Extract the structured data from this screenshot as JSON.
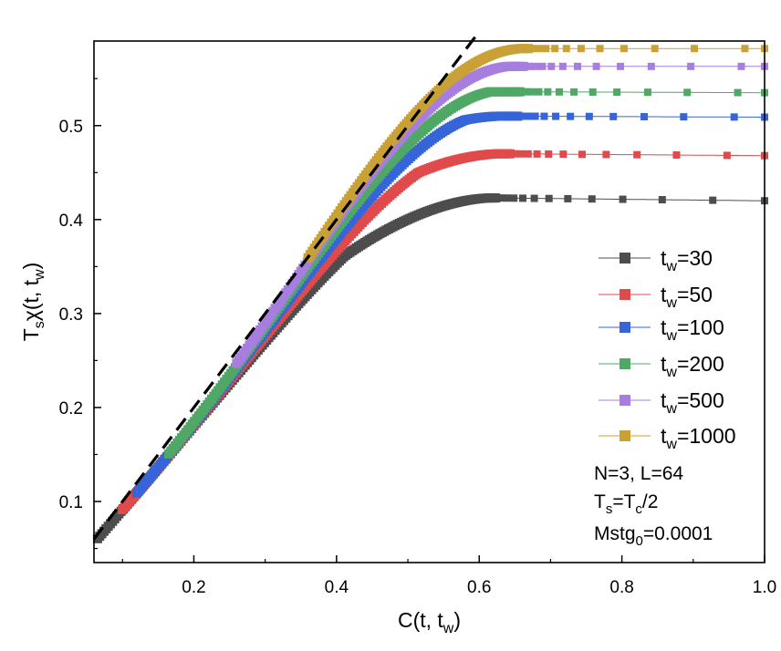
{
  "chart_data": {
    "type": "scatter",
    "title": "",
    "xlabel": {
      "base": "C(t, t",
      "sub": "w",
      "tail": ")"
    },
    "ylabel": {
      "a": "T",
      "a_sub": "s",
      "b": "χ(t, t",
      "b_sub": "w",
      "c": ")"
    },
    "xlim": [
      0.06,
      1.0
    ],
    "ylim": [
      0.035,
      0.59
    ],
    "x_ticks": [
      0.2,
      0.4,
      0.6,
      0.8,
      1.0
    ],
    "x_tick_labels": [
      "0.2",
      "0.4",
      "0.6",
      "0.8",
      "1.0"
    ],
    "y_ticks": [
      0.1,
      0.2,
      0.3,
      0.4,
      0.5
    ],
    "y_tick_labels": [
      "0.1",
      "0.2",
      "0.3",
      "0.4",
      "0.5"
    ],
    "reference_line": {
      "name": "y = x",
      "x": [
        0.06,
        0.6
      ],
      "y": [
        0.06,
        0.6
      ],
      "style": "dashed",
      "color": "#000000"
    },
    "series": [
      {
        "name": "tw=30",
        "legend": {
          "base": "t",
          "sub": "w",
          "tail": "=30"
        },
        "color": "#4d4d4d",
        "start_x": 0.065,
        "end_x": 0.625,
        "plateau_y": 0.423,
        "slope_end": 0.54,
        "final_y": 0.42
      },
      {
        "name": "tw=50",
        "legend": {
          "base": "t",
          "sub": "w",
          "tail": "=50"
        },
        "color": "#e04a4a",
        "start_x": 0.1,
        "end_x": 0.645,
        "plateau_y": 0.47,
        "slope_end": 0.44,
        "final_y": 0.468
      },
      {
        "name": "tw=100",
        "legend": {
          "base": "t",
          "sub": "w",
          "tail": "=100"
        },
        "color": "#3565d8",
        "start_x": 0.12,
        "end_x": 0.655,
        "plateau_y": 0.51,
        "slope_end": 0.34,
        "final_y": 0.509
      },
      {
        "name": "tw=200",
        "legend": {
          "base": "t",
          "sub": "w",
          "tail": "=200"
        },
        "color": "#4fa865",
        "start_x": 0.165,
        "end_x": 0.66,
        "plateau_y": 0.536,
        "slope_end": 0.22,
        "final_y": 0.535
      },
      {
        "name": "tw=500",
        "legend": {
          "base": "t",
          "sub": "w",
          "tail": "=500"
        },
        "color": "#a77ee0",
        "start_x": 0.26,
        "end_x": 0.665,
        "plateau_y": 0.563,
        "slope_end": 0.12,
        "final_y": 0.563
      },
      {
        "name": "tw=1000",
        "legend": {
          "base": "t",
          "sub": "w",
          "tail": "=1000"
        },
        "color": "#c9a136",
        "start_x": 0.36,
        "end_x": 0.67,
        "plateau_y": 0.582,
        "slope_end": 0.08,
        "final_y": 0.582
      }
    ],
    "annotations": {
      "line1": "N=3, L=64",
      "line2": {
        "a": "T",
        "a_sub": "s",
        "b": "=T",
        "b_sub": "c",
        "c": "/2"
      },
      "line3": {
        "a": "Mstg",
        "a_sub": "0",
        "b": "=0.0001"
      }
    },
    "legend_position": "lower-right"
  }
}
